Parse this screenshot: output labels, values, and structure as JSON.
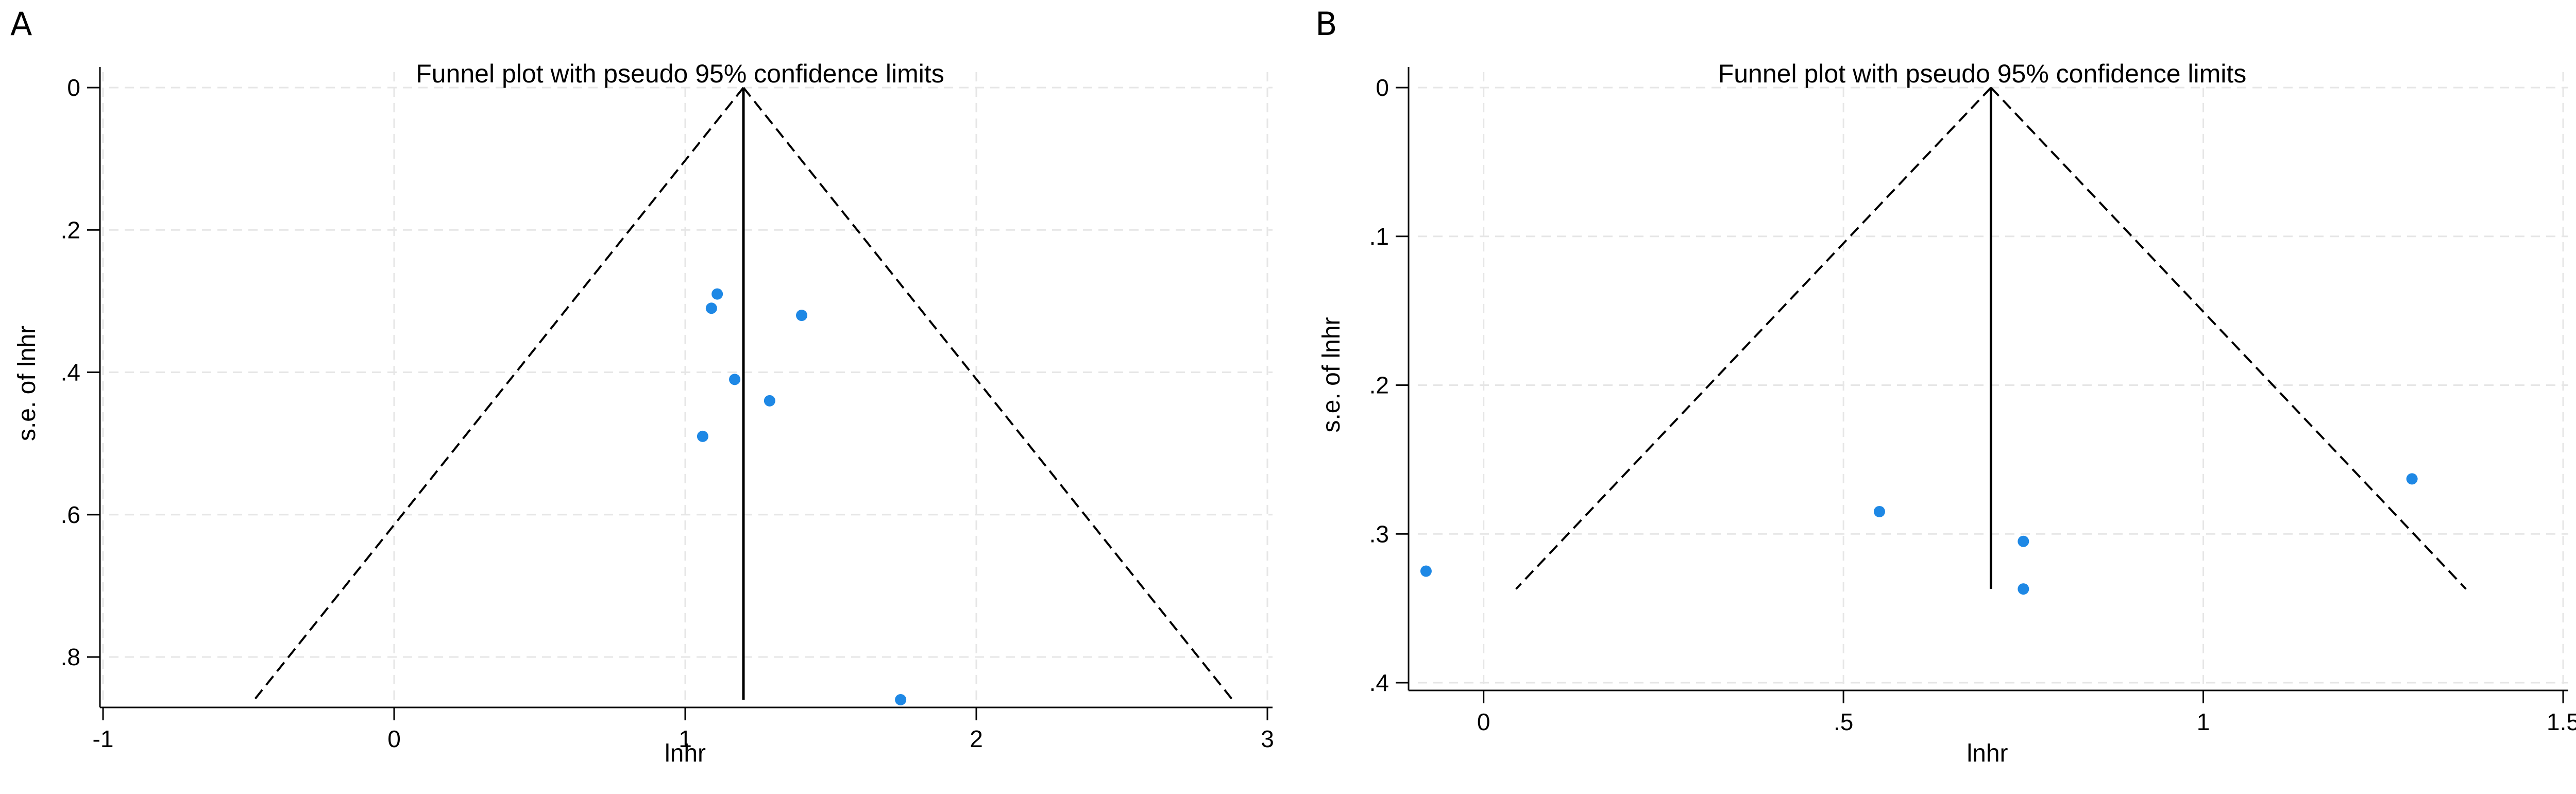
{
  "colors": {
    "point": "#1e88e5",
    "grid": "#e6e6e6",
    "axis": "#000000"
  },
  "chart_data": [
    {
      "panel_label": "A",
      "type": "scatter",
      "title": "Funnel plot with pseudo 95% confidence limits",
      "xlabel": "lnhr",
      "ylabel": "s.e. of lnhr",
      "xlim": [
        -1,
        3
      ],
      "ylim": [
        0,
        0.86
      ],
      "y_reversed": true,
      "xticks": [
        {
          "value": -1,
          "label": "-1"
        },
        {
          "value": 0,
          "label": "0"
        },
        {
          "value": 1,
          "label": "1"
        },
        {
          "value": 2,
          "label": "2"
        },
        {
          "value": 3,
          "label": "3"
        }
      ],
      "yticks": [
        {
          "value": 0,
          "label": "0"
        },
        {
          "value": 0.2,
          "label": ".2"
        },
        {
          "value": 0.4,
          "label": ".4"
        },
        {
          "value": 0.6,
          "label": ".6"
        },
        {
          "value": 0.8,
          "label": ".8"
        }
      ],
      "grid": true,
      "pooled_effect": 1.2,
      "ci_bounds": {
        "apex": [
          1.2,
          0
        ],
        "left_end": [
          -0.48,
          0.86
        ],
        "right_end": [
          2.88,
          0.86
        ]
      },
      "points": [
        {
          "x": 1.11,
          "y": 0.29
        },
        {
          "x": 1.09,
          "y": 0.31
        },
        {
          "x": 1.4,
          "y": 0.32
        },
        {
          "x": 1.17,
          "y": 0.41
        },
        {
          "x": 1.29,
          "y": 0.44
        },
        {
          "x": 1.06,
          "y": 0.49
        },
        {
          "x": 1.74,
          "y": 0.86
        }
      ]
    },
    {
      "panel_label": "B",
      "type": "scatter",
      "title": "Funnel plot with pseudo 95% confidence limits",
      "xlabel": "lnhr",
      "ylabel": "s.e. of lnhr",
      "xlim": [
        -0.1,
        1.5
      ],
      "ylim": [
        0,
        0.4
      ],
      "y_reversed": true,
      "xticks": [
        {
          "value": 0,
          "label": "0"
        },
        {
          "value": 0.5,
          "label": ".5"
        },
        {
          "value": 1,
          "label": "1"
        },
        {
          "value": 1.5,
          "label": "1.5"
        }
      ],
      "yticks": [
        {
          "value": 0,
          "label": "0"
        },
        {
          "value": 0.1,
          "label": ".1"
        },
        {
          "value": 0.2,
          "label": ".2"
        },
        {
          "value": 0.3,
          "label": ".3"
        },
        {
          "value": 0.4,
          "label": ".4"
        }
      ],
      "grid": true,
      "pooled_effect": 0.705,
      "ci_bounds": {
        "apex": [
          0.705,
          0
        ],
        "left_end": [
          0.045,
          0.337
        ],
        "right_end": [
          1.365,
          0.337
        ]
      },
      "points": [
        {
          "x": 1.29,
          "y": 0.263
        },
        {
          "x": 0.55,
          "y": 0.285
        },
        {
          "x": 0.75,
          "y": 0.305
        },
        {
          "x": -0.08,
          "y": 0.325
        },
        {
          "x": 0.75,
          "y": 0.337
        }
      ]
    }
  ]
}
